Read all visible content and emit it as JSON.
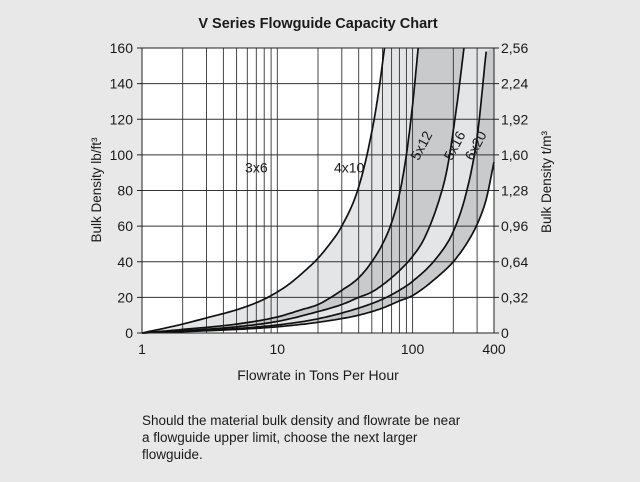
{
  "chart_data": {
    "type": "line",
    "title": "V Series Flowguide Capacity Chart",
    "xlabel": "Flowrate in Tons Per Hour",
    "ylabel": "Bulk Density  lb/ft³",
    "ylabel_right": "Bulk Density  t/m³",
    "x_scale": "log",
    "xlim": [
      1,
      400
    ],
    "ylim": [
      0,
      160
    ],
    "x_ticks": [
      {
        "value": 1,
        "label": "1"
      },
      {
        "value": 10,
        "label": "10"
      },
      {
        "value": 100,
        "label": "100"
      },
      {
        "value": 400,
        "label": "400"
      }
    ],
    "y_ticks": [
      0,
      20,
      40,
      60,
      80,
      100,
      120,
      140,
      160
    ],
    "y_ticks_right": [
      "0",
      "0,32",
      "0,64",
      "0,96",
      "1,28",
      "1,60",
      "1,92",
      "2,24",
      "2,56"
    ],
    "grid": true,
    "series": [
      {
        "name": "3x6",
        "x": [
          1,
          2,
          3,
          5,
          7,
          9,
          12,
          15,
          20,
          25,
          30,
          40,
          50,
          56,
          62
        ],
        "y": [
          0,
          5,
          8.5,
          13,
          17,
          21,
          27,
          33,
          42,
          51,
          60,
          82,
          113,
          135,
          160
        ]
      },
      {
        "name": "4x10",
        "x": [
          1,
          2,
          5,
          10,
          15,
          20,
          30,
          40,
          50,
          60,
          70,
          80,
          90,
          100,
          110
        ],
        "y": [
          0,
          2,
          5,
          9,
          13,
          16,
          24,
          31,
          40,
          50,
          62,
          78,
          100,
          128,
          160
        ]
      },
      {
        "name": "5x12",
        "x": [
          1,
          5,
          10,
          20,
          30,
          40,
          50,
          60,
          80,
          100,
          120,
          150,
          180,
          210,
          240
        ],
        "y": [
          0,
          3.5,
          6.5,
          12,
          16,
          20,
          23,
          27,
          35,
          43,
          52,
          70,
          92,
          125,
          160
        ]
      },
      {
        "name": "5x16",
        "x": [
          1,
          5,
          10,
          20,
          40,
          60,
          80,
          100,
          150,
          200,
          250,
          300,
          350
        ],
        "y": [
          0,
          2.5,
          4.5,
          8,
          14,
          19,
          24,
          29,
          42,
          57,
          79,
          110,
          158
        ]
      },
      {
        "name": "6x20",
        "x": [
          1,
          5,
          10,
          20,
          40,
          60,
          80,
          100,
          150,
          200,
          250,
          300,
          350,
          400
        ],
        "y": [
          0,
          2,
          3.5,
          6,
          10,
          14,
          18,
          21,
          31,
          40,
          50,
          61,
          75,
          96
        ]
      }
    ],
    "curve_labels": [
      {
        "text": "3x6",
        "x": 7,
        "y": 90
      },
      {
        "text": "4x10",
        "x": 34,
        "y": 90
      },
      {
        "text": "5x12",
        "x": 125,
        "y": 104,
        "rotated": true
      },
      {
        "text": "5x16",
        "x": 220,
        "y": 104,
        "rotated": true
      },
      {
        "text": "6x20",
        "x": 315,
        "y": 104,
        "rotated": true
      }
    ],
    "shaded_bands": [
      {
        "between": [
          "3x6",
          "4x10"
        ],
        "color": "#e4e5e6"
      },
      {
        "between": [
          "4x10",
          "5x12"
        ],
        "color": "#c9cacb"
      },
      {
        "between": [
          "5x12",
          "5x16"
        ],
        "color": "#e4e5e6"
      },
      {
        "between": [
          "5x16",
          "6x20"
        ],
        "color": "#c9cacb"
      }
    ]
  },
  "note_lines": [
    "Should the material bulk density and flowrate be near",
    "a flowguide upper limit, choose the next larger",
    "flowguide."
  ],
  "colors": {
    "background": "#e8e8e9",
    "plot_background": "#ffffff",
    "gridline": "#333333",
    "curve": "#111111"
  }
}
